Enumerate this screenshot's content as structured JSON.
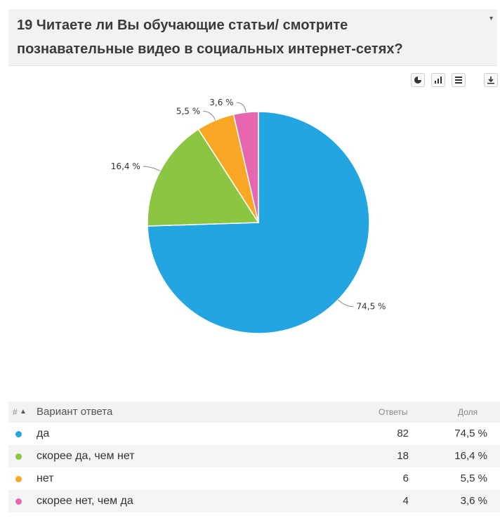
{
  "header": {
    "title_line1": "19 Читаете ли Вы обучающие статьи/ смотрите",
    "title_line2": "познавательные видео в социальных интернет-сетях?"
  },
  "toolbar": {
    "icons": [
      "pie-chart-icon",
      "bar-chart-icon",
      "table-icon",
      "download-icon"
    ]
  },
  "chart_data": {
    "type": "pie",
    "title": "",
    "categories": [
      "да",
      "скорее да, чем нет",
      "нет",
      "скорее нет, чем да"
    ],
    "values": [
      74.5,
      16.4,
      5.5,
      3.6
    ],
    "labels": [
      "74,5 %",
      "16,4 %",
      "5,5 %",
      "3,6 %"
    ],
    "colors": [
      "#22a5e0",
      "#8cc541",
      "#f9a825",
      "#e667b0"
    ],
    "legend": "none"
  },
  "table": {
    "headers": {
      "num": "#",
      "variant": "Вариант ответа",
      "answers": "Ответы",
      "share": "Доля"
    },
    "rows": [
      {
        "label": "да",
        "answers": "82",
        "share": "74,5 %",
        "color": "#22a5e0"
      },
      {
        "label": "скорее да, чем нет",
        "answers": "18",
        "share": "16,4 %",
        "color": "#8cc541"
      },
      {
        "label": "нет",
        "answers": "6",
        "share": "5,5 %",
        "color": "#f9a825"
      },
      {
        "label": "скорее нет, чем да",
        "answers": "4",
        "share": "3,6 %",
        "color": "#e667b0"
      }
    ]
  }
}
